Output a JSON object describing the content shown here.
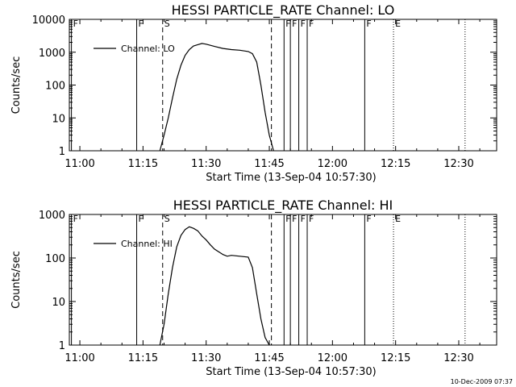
{
  "chart_data": [
    {
      "type": "line",
      "title": "HESSI PARTICLE_RATE Channel: LO",
      "xlabel": "Start Time (13-Sep-04 10:57:30)",
      "ylabel": "Counts/sec",
      "yscale": "log",
      "ylim": [
        1,
        10000
      ],
      "xlim": [
        "10:57:30",
        "12:39:00"
      ],
      "xticks": [
        "11:00",
        "11:15",
        "11:30",
        "11:45",
        "12:00",
        "12:15",
        "12:30"
      ],
      "yticks": [
        "1",
        "10",
        "100",
        "1000",
        "10000"
      ],
      "legend": {
        "entries": [
          "Channel: LO"
        ],
        "placement": "top-left"
      },
      "series": [
        {
          "name": "Channel: LO",
          "x": [
            "11:19:00",
            "11:20:00",
            "11:21:00",
            "11:22:00",
            "11:23:00",
            "11:24:00",
            "11:25:00",
            "11:26:00",
            "11:27:00",
            "11:28:00",
            "11:29:00",
            "11:30:00",
            "11:32:00",
            "11:34:00",
            "11:36:00",
            "11:38:00",
            "11:40:00",
            "11:41:00",
            "11:42:00",
            "11:43:00",
            "11:44:00",
            "11:45:00",
            "11:46:00"
          ],
          "y": [
            1,
            3,
            10,
            40,
            150,
            400,
            800,
            1200,
            1550,
            1700,
            1850,
            1750,
            1500,
            1300,
            1200,
            1150,
            1050,
            900,
            500,
            100,
            15,
            3,
            1
          ]
        }
      ],
      "flag_lines": [
        {
          "time": "10:58:00",
          "label": "F",
          "style": "solid"
        },
        {
          "time": "11:13:30",
          "label": "F",
          "style": "solid"
        },
        {
          "time": "11:19:40",
          "label": "S",
          "style": "dashed"
        },
        {
          "time": "11:45:30",
          "label": "",
          "style": "dashed"
        },
        {
          "time": "11:48:30",
          "label": "F",
          "style": "solid"
        },
        {
          "time": "11:50:00",
          "label": "F",
          "style": "solid"
        },
        {
          "time": "11:52:00",
          "label": "F",
          "style": "solid"
        },
        {
          "time": "11:54:00",
          "label": "F",
          "style": "solid"
        },
        {
          "time": "12:07:40",
          "label": "F",
          "style": "solid"
        },
        {
          "time": "12:14:30",
          "label": "E",
          "style": "dotted"
        },
        {
          "time": "12:31:30",
          "label": "",
          "style": "dotted"
        }
      ]
    },
    {
      "type": "line",
      "title": "HESSI PARTICLE_RATE Channel: HI",
      "xlabel": "Start Time (13-Sep-04 10:57:30)",
      "ylabel": "Counts/sec",
      "yscale": "log",
      "ylim": [
        1,
        1000
      ],
      "xlim": [
        "10:57:30",
        "12:39:00"
      ],
      "xticks": [
        "11:00",
        "11:15",
        "11:30",
        "11:45",
        "12:00",
        "12:15",
        "12:30"
      ],
      "yticks": [
        "1",
        "10",
        "100",
        "1000"
      ],
      "legend": {
        "entries": [
          "Channel: HI"
        ],
        "placement": "top-left"
      },
      "series": [
        {
          "name": "Channel: HI",
          "x": [
            "11:19:00",
            "11:20:00",
            "11:21:00",
            "11:22:00",
            "11:23:00",
            "11:24:00",
            "11:25:00",
            "11:26:00",
            "11:27:00",
            "11:28:00",
            "11:29:00",
            "11:30:00",
            "11:31:00",
            "11:32:00",
            "11:34:00",
            "11:35:00",
            "11:36:00",
            "11:38:00",
            "11:40:00",
            "11:41:00",
            "11:42:00",
            "11:43:00",
            "11:44:00",
            "11:45:00"
          ],
          "y": [
            1,
            3,
            15,
            60,
            180,
            330,
            450,
            520,
            480,
            420,
            320,
            260,
            200,
            160,
            120,
            110,
            115,
            110,
            105,
            60,
            15,
            4,
            1.5,
            1
          ]
        }
      ],
      "flag_lines": [
        {
          "time": "10:58:00",
          "label": "F",
          "style": "solid"
        },
        {
          "time": "11:13:30",
          "label": "F",
          "style": "solid"
        },
        {
          "time": "11:19:40",
          "label": "S",
          "style": "dashed"
        },
        {
          "time": "11:45:30",
          "label": "",
          "style": "dashed"
        },
        {
          "time": "11:48:30",
          "label": "F",
          "style": "solid"
        },
        {
          "time": "11:50:00",
          "label": "F",
          "style": "solid"
        },
        {
          "time": "11:52:00",
          "label": "F",
          "style": "solid"
        },
        {
          "time": "11:54:00",
          "label": "F",
          "style": "solid"
        },
        {
          "time": "12:07:40",
          "label": "F",
          "style": "solid"
        },
        {
          "time": "12:14:30",
          "label": "E",
          "style": "dotted"
        },
        {
          "time": "12:31:30",
          "label": "",
          "style": "dotted"
        }
      ]
    }
  ],
  "footer": {
    "timestamp": "10-Dec-2009 07:37"
  }
}
